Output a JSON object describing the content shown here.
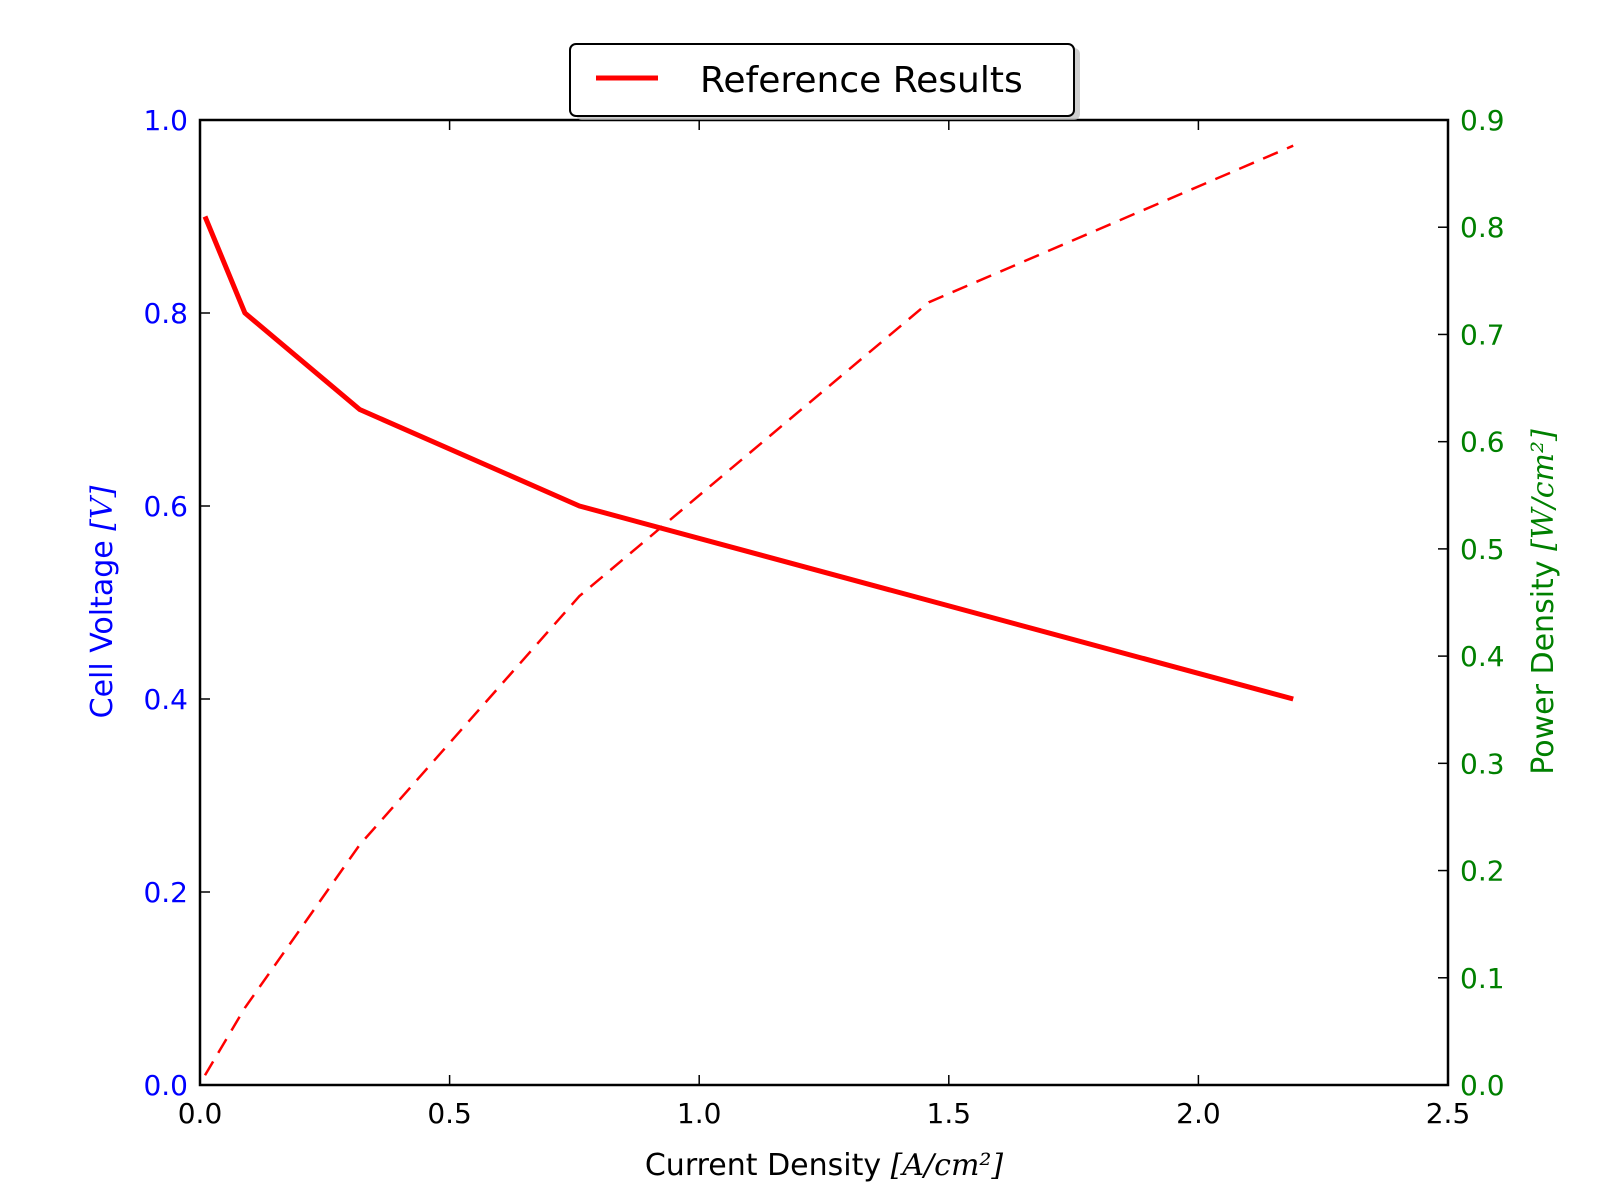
{
  "chart_data": {
    "type": "line",
    "legend": {
      "placement": "top-center",
      "entries": [
        "Reference Results"
      ]
    },
    "x_axis": {
      "label_text": "Current Density ",
      "label_math": "[A/cm²]",
      "range": [
        0.0,
        2.5
      ],
      "ticks": [
        "0.0",
        "0.5",
        "1.0",
        "1.5",
        "2.0",
        "2.5"
      ]
    },
    "y_axis_left": {
      "label_text": "Cell Voltage ",
      "label_math": "[V]",
      "range": [
        0.0,
        1.0
      ],
      "ticks": [
        "0.0",
        "0.2",
        "0.4",
        "0.6",
        "0.8",
        "1.0"
      ],
      "color": "#0000ff"
    },
    "y_axis_right": {
      "label_text": "Power Density ",
      "label_math": "[W/cm²]",
      "range": [
        0.0,
        0.9
      ],
      "ticks": [
        "0.0",
        "0.1",
        "0.2",
        "0.3",
        "0.4",
        "0.5",
        "0.6",
        "0.7",
        "0.8",
        "0.9"
      ],
      "color": "#008000"
    },
    "grid": false,
    "series": [
      {
        "name": "Reference Results",
        "axis": "left",
        "style": "solid",
        "color": "#ff0000",
        "x": [
          0.01,
          0.09,
          0.32,
          0.76,
          2.19
        ],
        "y": [
          0.9,
          0.8,
          0.7,
          0.6,
          0.4
        ]
      },
      {
        "axis": "right",
        "style": "dashed",
        "color": "#ff0000",
        "x": [
          0.01,
          0.09,
          0.32,
          0.76,
          1.46,
          2.19
        ],
        "y": [
          0.009,
          0.072,
          0.224,
          0.456,
          0.73,
          0.876
        ]
      }
    ]
  }
}
